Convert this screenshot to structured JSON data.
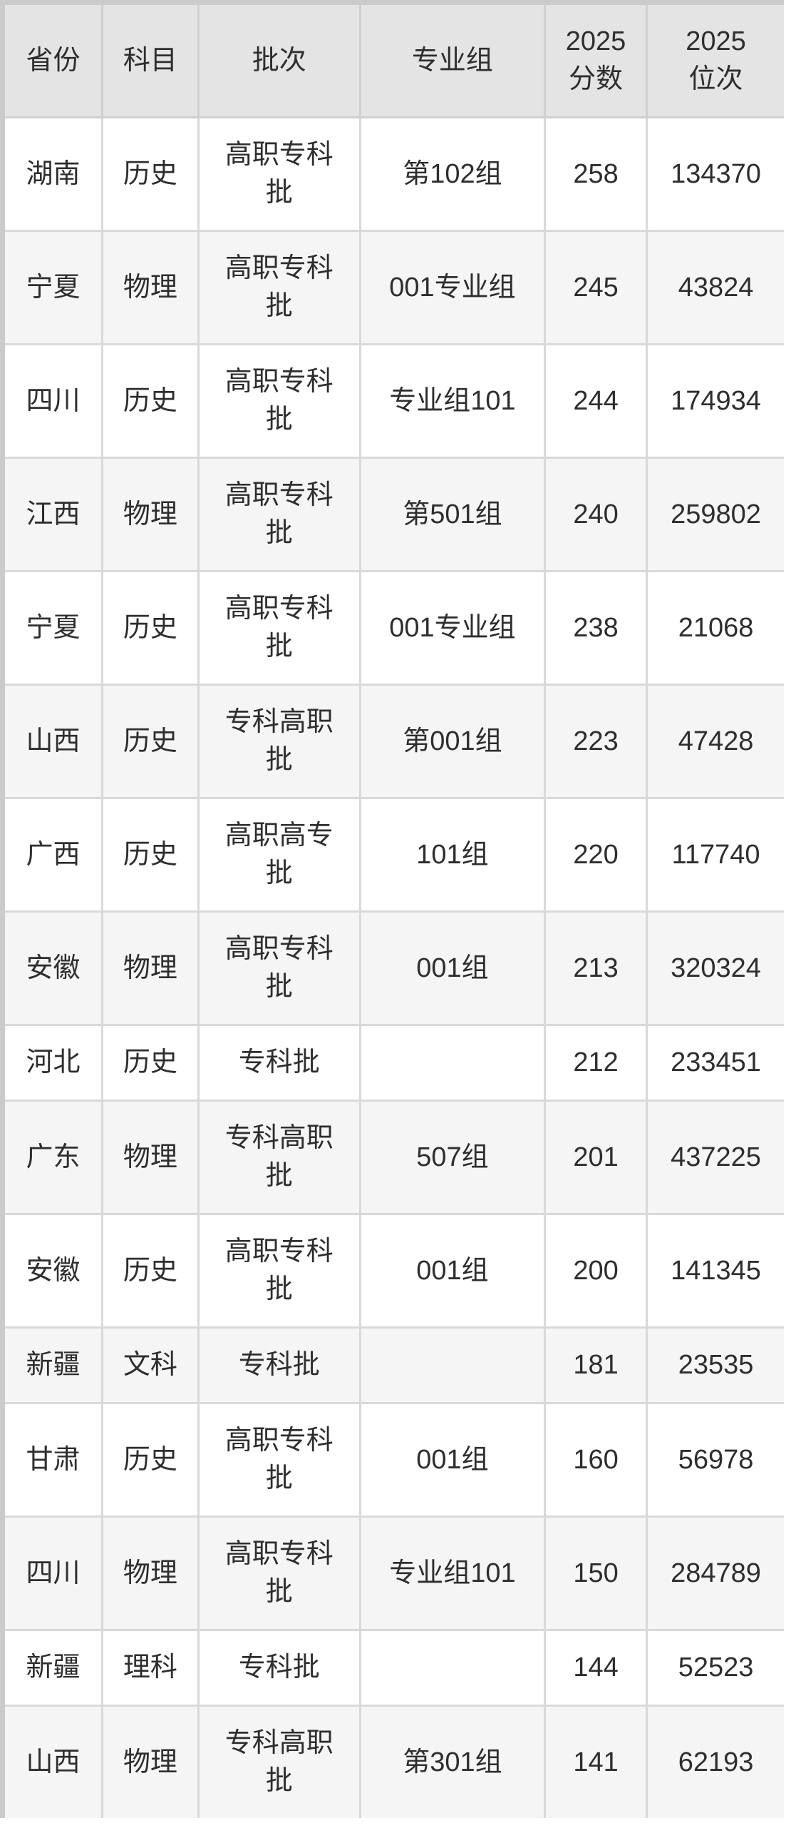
{
  "table": {
    "columns": [
      {
        "key": "province",
        "label": "省份"
      },
      {
        "key": "subject",
        "label": "科目"
      },
      {
        "key": "batch",
        "label": "批次"
      },
      {
        "key": "group",
        "label": "专业组"
      },
      {
        "key": "score",
        "label": "2025分数",
        "label_lines": [
          "2025",
          "分数"
        ]
      },
      {
        "key": "rank",
        "label": "2025位次",
        "label_lines": [
          "2025",
          "位次"
        ]
      }
    ],
    "rows": [
      {
        "province": "湖南",
        "subject": "历史",
        "batch": "高职专科批",
        "group": "第102组",
        "score": "258",
        "rank": "134370"
      },
      {
        "province": "宁夏",
        "subject": "物理",
        "batch": "高职专科批",
        "group": "001专业组",
        "score": "245",
        "rank": "43824"
      },
      {
        "province": "四川",
        "subject": "历史",
        "batch": "高职专科批",
        "group": "专业组101",
        "score": "244",
        "rank": "174934"
      },
      {
        "province": "江西",
        "subject": "物理",
        "batch": "高职专科批",
        "group": "第501组",
        "score": "240",
        "rank": "259802"
      },
      {
        "province": "宁夏",
        "subject": "历史",
        "batch": "高职专科批",
        "group": "001专业组",
        "score": "238",
        "rank": "21068"
      },
      {
        "province": "山西",
        "subject": "历史",
        "batch": "专科高职批",
        "group": "第001组",
        "score": "223",
        "rank": "47428"
      },
      {
        "province": "广西",
        "subject": "历史",
        "batch": "高职高专批",
        "group": "101组",
        "score": "220",
        "rank": "117740"
      },
      {
        "province": "安徽",
        "subject": "物理",
        "batch": "高职专科批",
        "group": "001组",
        "score": "213",
        "rank": "320324"
      },
      {
        "province": "河北",
        "subject": "历史",
        "batch": "专科批",
        "group": "",
        "score": "212",
        "rank": "233451"
      },
      {
        "province": "广东",
        "subject": "物理",
        "batch": "专科高职批",
        "group": "507组",
        "score": "201",
        "rank": "437225"
      },
      {
        "province": "安徽",
        "subject": "历史",
        "batch": "高职专科批",
        "group": "001组",
        "score": "200",
        "rank": "141345"
      },
      {
        "province": "新疆",
        "subject": "文科",
        "batch": "专科批",
        "group": "",
        "score": "181",
        "rank": "23535"
      },
      {
        "province": "甘肃",
        "subject": "历史",
        "batch": "高职专科批",
        "group": "001组",
        "score": "160",
        "rank": "56978"
      },
      {
        "province": "四川",
        "subject": "物理",
        "batch": "高职专科批",
        "group": "专业组101",
        "score": "150",
        "rank": "284789"
      },
      {
        "province": "新疆",
        "subject": "理科",
        "batch": "专科批",
        "group": "",
        "score": "144",
        "rank": "52523"
      },
      {
        "province": "山西",
        "subject": "物理",
        "batch": "专科高职批",
        "group": "第301组",
        "score": "141",
        "rank": "62193"
      }
    ]
  },
  "colors": {
    "header_bg": "#e4e4e4",
    "row_bg": "#ffffff",
    "row_alt_bg": "#f5f5f6",
    "grid_line": "#d9d9d9",
    "outer_border": "#cbcbcb",
    "text": "#2e2e2e"
  }
}
